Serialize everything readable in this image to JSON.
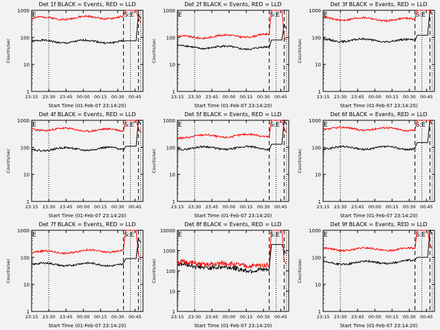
{
  "figure": {
    "xtick_labels": [
      "23:15",
      "23:30",
      "23:45",
      "00:00",
      "00:15",
      "00:30",
      "00:45"
    ],
    "ytick_labels": [
      "1",
      "10",
      "100",
      "1000"
    ],
    "xlabel": "Start Time (01-Feb-07 23:14:20)",
    "ylabel": "Counts/sec",
    "flag_labels": {
      "E": "E",
      "S": "S",
      "SE": "S:E"
    },
    "colors": {
      "events": "#000000",
      "lld": "#ff0000",
      "background": "#f2f2f2"
    }
  },
  "chart_data": [
    {
      "type": "line",
      "title": "Det 1f BLACK = Events, RED = LLD",
      "xlabel": "Start Time (01-Feb-07 23:14:20)",
      "ylabel": "Counts/sec",
      "ylim": [
        1,
        1000
      ],
      "x_range": [
        "23:15",
        "00:52"
      ],
      "series": [
        {
          "name": "Events",
          "color": "#000000",
          "values_x_min": [
            0,
            80,
            83,
            92
          ],
          "values_y": [
            70,
            70,
            75,
            700
          ]
        },
        {
          "name": "LLD",
          "color": "#ff0000",
          "values_x_min": [
            0,
            80,
            83,
            92
          ],
          "values_y": [
            500,
            560,
            1000,
            500
          ]
        }
      ]
    },
    {
      "type": "line",
      "title": "Det 2f BLACK = Events, RED = LLD",
      "xlabel": "Start Time (01-Feb-07 23:14:20)",
      "ylabel": "Counts/sec",
      "ylim": [
        1,
        1000
      ],
      "x_range": [
        "23:15",
        "00:52"
      ],
      "series": [
        {
          "name": "Events",
          "color": "#000000",
          "values_x_min": [
            0,
            80,
            83,
            92
          ],
          "values_y": [
            45,
            40,
            80,
            300
          ]
        },
        {
          "name": "LLD",
          "color": "#ff0000",
          "values_x_min": [
            0,
            80,
            83,
            92
          ],
          "values_y": [
            100,
            120,
            1000,
            110
          ]
        }
      ]
    },
    {
      "type": "line",
      "title": "Det 3f BLACK = Events, RED = LLD",
      "xlabel": "Start Time (01-Feb-07 23:14:20)",
      "ylabel": "Counts/sec",
      "ylim": [
        1,
        1000
      ],
      "x_range": [
        "23:15",
        "00:52"
      ],
      "series": [
        {
          "name": "Events",
          "color": "#000000",
          "values_x_min": [
            0,
            80,
            83,
            92
          ],
          "values_y": [
            80,
            75,
            120,
            1000
          ]
        },
        {
          "name": "LLD",
          "color": "#ff0000",
          "values_x_min": [
            0,
            80,
            83,
            92
          ],
          "values_y": [
            500,
            450,
            1000,
            1000
          ]
        }
      ]
    },
    {
      "type": "line",
      "title": "Det 4f BLACK = Events, RED = LLD",
      "xlabel": "Start Time (01-Feb-07 23:14:20)",
      "ylabel": "Counts/sec",
      "ylim": [
        1,
        1000
      ],
      "x_range": [
        "23:15",
        "00:52"
      ],
      "series": [
        {
          "name": "Events",
          "color": "#000000",
          "values_x_min": [
            0,
            80,
            83,
            92
          ],
          "values_y": [
            85,
            90,
            110,
            1000
          ]
        },
        {
          "name": "LLD",
          "color": "#ff0000",
          "values_x_min": [
            0,
            80,
            83,
            92
          ],
          "values_y": [
            480,
            420,
            1000,
            500
          ]
        }
      ]
    },
    {
      "type": "line",
      "title": "Det 5f BLACK = Events, RED = LLD",
      "xlabel": "Start Time (01-Feb-07 23:14:20)",
      "ylabel": "Counts/sec",
      "ylim": [
        1,
        1000
      ],
      "x_range": [
        "23:15",
        "00:52"
      ],
      "series": [
        {
          "name": "Events",
          "color": "#000000",
          "values_x_min": [
            0,
            80,
            83,
            92
          ],
          "values_y": [
            95,
            95,
            130,
            1000
          ]
        },
        {
          "name": "LLD",
          "color": "#ff0000",
          "values_x_min": [
            0,
            80,
            83,
            92
          ],
          "values_y": [
            250,
            280,
            1000,
            500
          ]
        }
      ]
    },
    {
      "type": "line",
      "title": "Det 6f BLACK = Events, RED = LLD",
      "xlabel": "Start Time (01-Feb-07 23:14:20)",
      "ylabel": "Counts/sec",
      "ylim": [
        1,
        1000
      ],
      "x_range": [
        "23:15",
        "00:52"
      ],
      "series": [
        {
          "name": "Events",
          "color": "#000000",
          "values_x_min": [
            0,
            80,
            83,
            92
          ],
          "values_y": [
            95,
            95,
            150,
            1000
          ]
        },
        {
          "name": "LLD",
          "color": "#ff0000",
          "values_x_min": [
            0,
            80,
            83,
            92
          ],
          "values_y": [
            500,
            470,
            1000,
            1000
          ]
        }
      ]
    },
    {
      "type": "line",
      "title": "Det 7f BLACK = Events, RED = LLD",
      "xlabel": "Start Time (01-Feb-07 23:14:20)",
      "ylabel": "Counts/sec",
      "ylim": [
        1,
        1000
      ],
      "x_range": [
        "23:15",
        "00:52"
      ],
      "series": [
        {
          "name": "Events",
          "color": "#000000",
          "values_x_min": [
            0,
            80,
            83,
            92
          ],
          "values_y": [
            55,
            55,
            90,
            500
          ]
        },
        {
          "name": "LLD",
          "color": "#ff0000",
          "values_x_min": [
            0,
            80,
            83,
            92
          ],
          "values_y": [
            150,
            180,
            1000,
            120
          ]
        }
      ]
    },
    {
      "type": "line",
      "title": "Det 8f BLACK = Events, RED = LLD",
      "xlabel": "Start Time (01-Feb-07 23:14:20)",
      "ylabel": "Counts/sec",
      "ylim": [
        1,
        10000
      ],
      "x_range": [
        "23:15",
        "00:52"
      ],
      "series": [
        {
          "name": "Events",
          "color": "#000000",
          "values_x_min": [
            0,
            80,
            83,
            92
          ],
          "values_y": [
            200,
            100,
            2000,
            1000
          ]
        },
        {
          "name": "LLD",
          "color": "#ff0000",
          "values_x_min": [
            0,
            80,
            83,
            92
          ],
          "values_y": [
            250,
            180,
            10000,
            300
          ]
        }
      ]
    },
    {
      "type": "line",
      "title": "Det 9f BLACK = Events, RED = LLD",
      "xlabel": "Start Time (01-Feb-07 23:14:20)",
      "ylabel": "Counts/sec",
      "ylim": [
        1,
        1000
      ],
      "x_range": [
        "23:15",
        "00:52"
      ],
      "series": [
        {
          "name": "Events",
          "color": "#000000",
          "values_x_min": [
            0,
            80,
            83,
            92
          ],
          "values_y": [
            60,
            70,
            100,
            1000
          ]
        },
        {
          "name": "LLD",
          "color": "#ff0000",
          "values_x_min": [
            0,
            80,
            83,
            92
          ],
          "values_y": [
            200,
            200,
            1000,
            300
          ]
        }
      ]
    }
  ]
}
